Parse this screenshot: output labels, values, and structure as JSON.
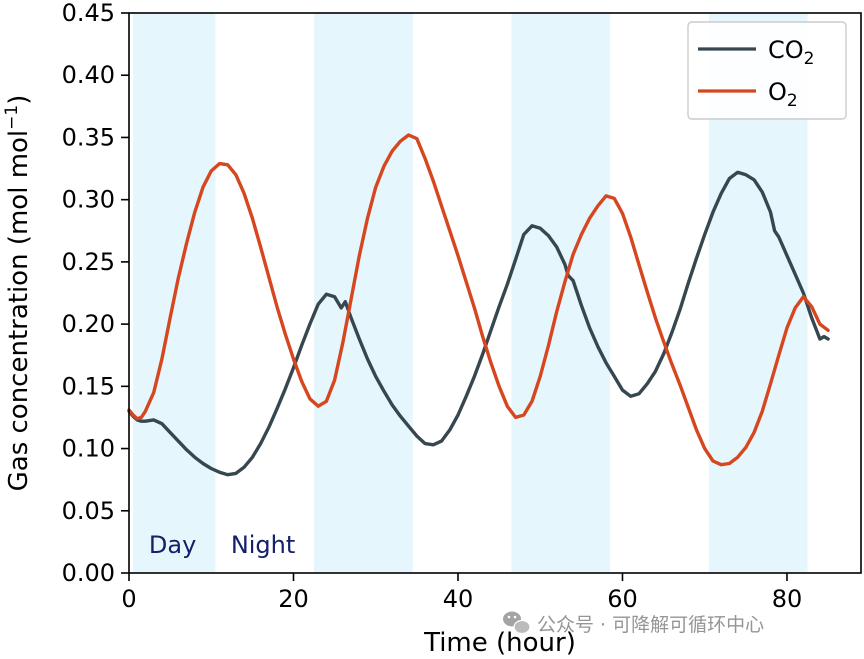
{
  "chart_data": {
    "type": "line",
    "xlabel": "Time (hour)",
    "ylabel": "Gas concentration (mol mol",
    "ylabel_superscript": "−1",
    "ylabel_close": ")",
    "xlim": [
      0,
      89
    ],
    "ylim": [
      0,
      0.45
    ],
    "x_ticks": [
      0,
      20,
      40,
      60,
      80
    ],
    "x_tick_labels": [
      "0",
      "20",
      "40",
      "60",
      "80"
    ],
    "y_ticks": [
      0,
      0.05,
      0.1,
      0.15,
      0.2,
      0.25,
      0.3,
      0.35,
      0.4,
      0.45
    ],
    "y_tick_labels": [
      "0.00",
      "0.05",
      "0.10",
      "0.15",
      "0.20",
      "0.25",
      "0.30",
      "0.35",
      "0.40",
      "0.45"
    ],
    "grid": false,
    "legend_position": "top-right",
    "day_bands": [
      [
        0.5,
        10.5
      ],
      [
        22.5,
        34.5
      ],
      [
        46.5,
        58.5
      ],
      [
        70.5,
        82.5
      ]
    ],
    "day_band_color": "#e6f6fd",
    "band_labels": [
      {
        "text": "Day",
        "x": 5.3
      },
      {
        "text": "Night",
        "x": 16.3
      }
    ],
    "series": [
      {
        "name_main": "CO",
        "name_sub": "2",
        "color": "#37474f",
        "points": [
          [
            0,
            0.13
          ],
          [
            0.5,
            0.126
          ],
          [
            1,
            0.123
          ],
          [
            1.5,
            0.122
          ],
          [
            2,
            0.122
          ],
          [
            3,
            0.123
          ],
          [
            4,
            0.12
          ],
          [
            5,
            0.113
          ],
          [
            6,
            0.106
          ],
          [
            7,
            0.099
          ],
          [
            8,
            0.093
          ],
          [
            9,
            0.088
          ],
          [
            10,
            0.084
          ],
          [
            11,
            0.081
          ],
          [
            12,
            0.079
          ],
          [
            13,
            0.08
          ],
          [
            14,
            0.085
          ],
          [
            15,
            0.093
          ],
          [
            16,
            0.104
          ],
          [
            17,
            0.117
          ],
          [
            18,
            0.132
          ],
          [
            19,
            0.148
          ],
          [
            20,
            0.165
          ],
          [
            21,
            0.183
          ],
          [
            22,
            0.2
          ],
          [
            23,
            0.216
          ],
          [
            24,
            0.224
          ],
          [
            25,
            0.222
          ],
          [
            25.8,
            0.213
          ],
          [
            26.3,
            0.218
          ],
          [
            27,
            0.205
          ],
          [
            28,
            0.188
          ],
          [
            29,
            0.172
          ],
          [
            30,
            0.158
          ],
          [
            31,
            0.146
          ],
          [
            32,
            0.135
          ],
          [
            33,
            0.126
          ],
          [
            34,
            0.118
          ],
          [
            35,
            0.11
          ],
          [
            36,
            0.104
          ],
          [
            37,
            0.103
          ],
          [
            38,
            0.106
          ],
          [
            39,
            0.115
          ],
          [
            40,
            0.127
          ],
          [
            41,
            0.142
          ],
          [
            42,
            0.158
          ],
          [
            43,
            0.176
          ],
          [
            44,
            0.195
          ],
          [
            45,
            0.214
          ],
          [
            46,
            0.232
          ],
          [
            47,
            0.252
          ],
          [
            48,
            0.272
          ],
          [
            49,
            0.279
          ],
          [
            50,
            0.277
          ],
          [
            51,
            0.271
          ],
          [
            52,
            0.262
          ],
          [
            53,
            0.248
          ],
          [
            53.4,
            0.239
          ],
          [
            54,
            0.235
          ],
          [
            55,
            0.215
          ],
          [
            56,
            0.197
          ],
          [
            57,
            0.182
          ],
          [
            58,
            0.169
          ],
          [
            59,
            0.158
          ],
          [
            60,
            0.147
          ],
          [
            61,
            0.142
          ],
          [
            62,
            0.144
          ],
          [
            63,
            0.152
          ],
          [
            64,
            0.162
          ],
          [
            65,
            0.176
          ],
          [
            66,
            0.193
          ],
          [
            67,
            0.212
          ],
          [
            68,
            0.233
          ],
          [
            69,
            0.253
          ],
          [
            70,
            0.272
          ],
          [
            71,
            0.29
          ],
          [
            72,
            0.305
          ],
          [
            73,
            0.317
          ],
          [
            74,
            0.322
          ],
          [
            75,
            0.32
          ],
          [
            76,
            0.316
          ],
          [
            77,
            0.306
          ],
          [
            78,
            0.29
          ],
          [
            78.5,
            0.275
          ],
          [
            79,
            0.27
          ],
          [
            80,
            0.255
          ],
          [
            81,
            0.24
          ],
          [
            82,
            0.225
          ],
          [
            83,
            0.205
          ],
          [
            84,
            0.188
          ],
          [
            84.5,
            0.19
          ],
          [
            85,
            0.188
          ]
        ]
      },
      {
        "name_main": "O",
        "name_sub": "2",
        "color": "#d6461f",
        "points": [
          [
            0,
            0.131
          ],
          [
            0.5,
            0.127
          ],
          [
            1,
            0.124
          ],
          [
            1.5,
            0.125
          ],
          [
            2,
            0.13
          ],
          [
            3,
            0.145
          ],
          [
            4,
            0.172
          ],
          [
            5,
            0.205
          ],
          [
            6,
            0.237
          ],
          [
            7,
            0.265
          ],
          [
            8,
            0.29
          ],
          [
            9,
            0.31
          ],
          [
            10,
            0.323
          ],
          [
            11,
            0.329
          ],
          [
            12,
            0.328
          ],
          [
            13,
            0.32
          ],
          [
            14,
            0.305
          ],
          [
            15,
            0.285
          ],
          [
            16,
            0.262
          ],
          [
            17,
            0.238
          ],
          [
            18,
            0.214
          ],
          [
            19,
            0.192
          ],
          [
            20,
            0.172
          ],
          [
            21,
            0.154
          ],
          [
            22,
            0.14
          ],
          [
            23,
            0.134
          ],
          [
            24,
            0.138
          ],
          [
            25,
            0.155
          ],
          [
            26,
            0.185
          ],
          [
            27,
            0.22
          ],
          [
            28,
            0.255
          ],
          [
            29,
            0.285
          ],
          [
            30,
            0.31
          ],
          [
            31,
            0.327
          ],
          [
            32,
            0.339
          ],
          [
            33,
            0.347
          ],
          [
            34,
            0.352
          ],
          [
            35,
            0.349
          ],
          [
            36,
            0.333
          ],
          [
            37,
            0.315
          ],
          [
            38,
            0.295
          ],
          [
            39,
            0.275
          ],
          [
            40,
            0.255
          ],
          [
            41,
            0.234
          ],
          [
            42,
            0.213
          ],
          [
            43,
            0.19
          ],
          [
            44,
            0.169
          ],
          [
            45,
            0.15
          ],
          [
            46,
            0.134
          ],
          [
            47,
            0.125
          ],
          [
            48,
            0.127
          ],
          [
            49,
            0.138
          ],
          [
            50,
            0.158
          ],
          [
            51,
            0.183
          ],
          [
            52,
            0.21
          ],
          [
            53,
            0.234
          ],
          [
            54,
            0.256
          ],
          [
            55,
            0.272
          ],
          [
            56,
            0.285
          ],
          [
            57,
            0.295
          ],
          [
            58,
            0.303
          ],
          [
            59,
            0.301
          ],
          [
            60,
            0.289
          ],
          [
            61,
            0.27
          ],
          [
            62,
            0.248
          ],
          [
            63,
            0.226
          ],
          [
            64,
            0.205
          ],
          [
            65,
            0.186
          ],
          [
            66,
            0.168
          ],
          [
            67,
            0.151
          ],
          [
            68,
            0.133
          ],
          [
            69,
            0.115
          ],
          [
            70,
            0.1
          ],
          [
            71,
            0.09
          ],
          [
            72,
            0.087
          ],
          [
            73,
            0.088
          ],
          [
            74,
            0.093
          ],
          [
            75,
            0.101
          ],
          [
            76,
            0.113
          ],
          [
            77,
            0.13
          ],
          [
            78,
            0.152
          ],
          [
            79,
            0.175
          ],
          [
            80,
            0.197
          ],
          [
            81,
            0.213
          ],
          [
            82,
            0.222
          ],
          [
            83,
            0.214
          ],
          [
            84,
            0.2
          ],
          [
            85,
            0.195
          ]
        ]
      }
    ]
  },
  "watermark": {
    "icon": "wechat-icon",
    "text": "公众号 · 可降解可循环中心"
  }
}
